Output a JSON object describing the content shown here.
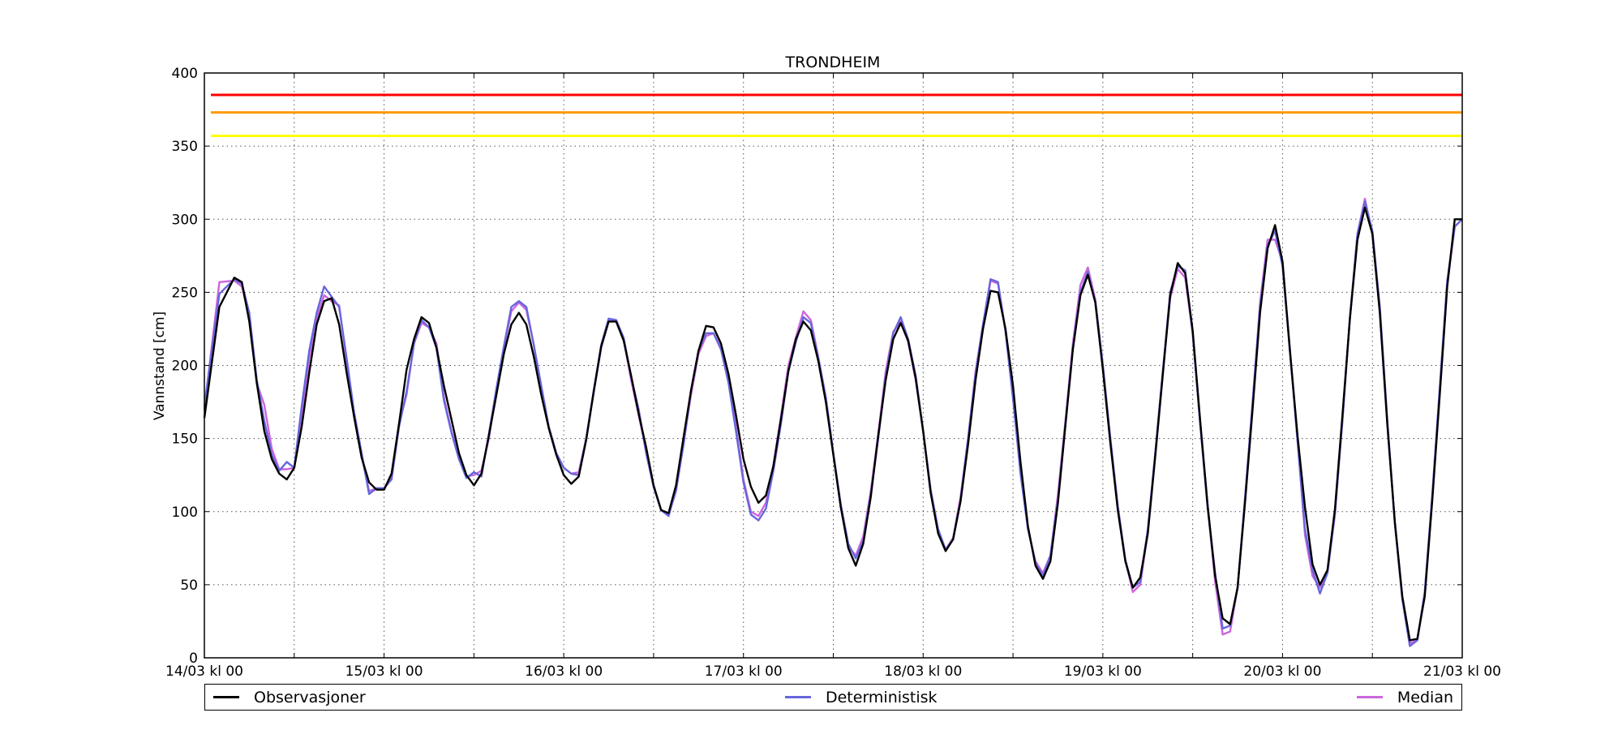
{
  "chart_data": {
    "type": "line",
    "title": "TRONDHEIM",
    "xlabel": "",
    "ylabel": "Vannstand [cm]",
    "ylim": [
      0,
      400
    ],
    "xlim": [
      0,
      168
    ],
    "x_unit": "hours since 14/03 kl 00",
    "grid": true,
    "legend_placement": "below plot",
    "y_ticks": [
      "0",
      "50",
      "100",
      "150",
      "200",
      "250",
      "300",
      "350",
      "400"
    ],
    "x_major_tick_labels": [
      "14/03 kl 00",
      "15/03 kl 00",
      "16/03 kl 00",
      "17/03 kl 00",
      "18/03 kl 00",
      "19/03 kl 00",
      "20/03 kl 00",
      "21/03 kl 00"
    ],
    "thresholds": [
      {
        "value": 385,
        "color": "#ff0000"
      },
      {
        "value": 373,
        "color": "#ff9900"
      },
      {
        "value": 357,
        "color": "#ffff00"
      }
    ],
    "series": [
      {
        "name": "Observasjoner",
        "color": "#000000",
        "x": [
          0,
          2,
          4,
          5,
          6,
          7,
          8,
          9,
          10,
          11,
          12,
          13,
          14,
          15,
          16,
          17,
          18,
          19,
          20,
          21,
          22,
          23,
          24,
          25,
          26,
          27,
          28,
          29,
          30,
          31,
          32,
          33,
          34,
          35,
          36,
          37,
          38,
          39,
          40,
          41,
          42,
          43,
          44,
          45,
          46,
          47,
          48,
          49,
          50,
          51,
          52,
          53,
          54,
          55,
          56,
          57,
          58,
          59,
          60,
          61,
          62,
          63,
          64,
          65,
          66,
          67,
          68,
          69,
          70,
          71,
          72,
          73,
          74,
          75,
          76,
          77,
          78,
          79,
          80,
          81,
          82,
          83,
          84,
          85,
          86,
          87,
          88,
          89,
          90,
          91,
          92,
          93,
          94,
          95,
          96,
          97,
          98,
          99,
          100,
          101,
          102,
          103,
          104,
          105,
          106,
          107,
          108,
          109,
          110,
          111,
          112,
          113,
          114,
          115,
          116,
          117,
          118,
          119,
          120,
          121,
          122,
          123,
          124,
          125,
          126,
          127,
          128,
          129,
          130,
          131,
          132,
          133,
          134,
          135,
          136,
          137,
          138,
          139,
          140,
          141,
          142,
          143,
          144,
          145,
          146,
          147,
          148,
          149,
          150,
          151,
          152,
          153,
          154,
          155,
          156,
          157,
          158,
          159,
          160,
          161,
          162,
          163,
          164,
          165,
          166,
          167,
          168
        ],
        "values": [
          164,
          240,
          260,
          257,
          230,
          188,
          155,
          136,
          126,
          122,
          130,
          158,
          195,
          228,
          244,
          246,
          228,
          195,
          165,
          137,
          120,
          115,
          115,
          126,
          160,
          197,
          218,
          233,
          229,
          212,
          186,
          163,
          140,
          125,
          118,
          126,
          152,
          180,
          208,
          228,
          236,
          228,
          206,
          180,
          157,
          139,
          125,
          119,
          124,
          149,
          182,
          213,
          230,
          230,
          217,
          193,
          167,
          144,
          118,
          101,
          99,
          118,
          151,
          183,
          210,
          227,
          226,
          215,
          194,
          166,
          136,
          117,
          106,
          111,
          131,
          163,
          196,
          218,
          230,
          224,
          203,
          175,
          139,
          103,
          75,
          63,
          78,
          110,
          152,
          190,
          218,
          229,
          217,
          191,
          155,
          113,
          85,
          73,
          81,
          107,
          146,
          190,
          225,
          251,
          250,
          225,
          186,
          134,
          90,
          63,
          54,
          66,
          106,
          159,
          211,
          248,
          262,
          243,
          197,
          147,
          101,
          66,
          48,
          55,
          85,
          138,
          193,
          248,
          270,
          263,
          224,
          162,
          104,
          56,
          27,
          23,
          48,
          107,
          170,
          236,
          280,
          296,
          271,
          209,
          152,
          103,
          64,
          50,
          60,
          102,
          166,
          232,
          286,
          308,
          290,
          236,
          159,
          93,
          42,
          12,
          13,
          42,
          108,
          180,
          254,
          300,
          300
        ]
      },
      {
        "name": "Deterministisk",
        "color": "#6666dd",
        "x": [
          0,
          2,
          4,
          5,
          6,
          7,
          8,
          9,
          10,
          11,
          12,
          13,
          14,
          15,
          16,
          17,
          18,
          19,
          20,
          21,
          22,
          23,
          24,
          25,
          26,
          27,
          28,
          29,
          30,
          31,
          32,
          33,
          34,
          35,
          36,
          37,
          38,
          39,
          40,
          41,
          42,
          43,
          44,
          45,
          46,
          47,
          48,
          49,
          50,
          51,
          52,
          53,
          54,
          55,
          56,
          57,
          58,
          59,
          60,
          61,
          62,
          63,
          64,
          65,
          66,
          67,
          68,
          69,
          70,
          71,
          72,
          73,
          74,
          75,
          76,
          77,
          78,
          79,
          80,
          81,
          82,
          83,
          84,
          85,
          86,
          87,
          88,
          89,
          90,
          91,
          92,
          93,
          94,
          95,
          96,
          97,
          98,
          99,
          100,
          101,
          102,
          103,
          104,
          105,
          106,
          107,
          108,
          109,
          110,
          111,
          112,
          113,
          114,
          115,
          116,
          117,
          118,
          119,
          120,
          121,
          122,
          123,
          124,
          125,
          126,
          127,
          128,
          129,
          130,
          131,
          132,
          133,
          134,
          135,
          136,
          137,
          138,
          139,
          140,
          141,
          142,
          143,
          144,
          145,
          146,
          147,
          148,
          149,
          150,
          151,
          152,
          153,
          154,
          155,
          156,
          157,
          158,
          159,
          160,
          161,
          162,
          163,
          164,
          165,
          166,
          167,
          168
        ],
        "values": [
          172,
          249,
          259,
          256,
          236,
          190,
          162,
          139,
          128,
          134,
          130,
          172,
          210,
          236,
          254,
          247,
          240,
          205,
          168,
          140,
          112,
          116,
          116,
          122,
          158,
          182,
          215,
          231,
          226,
          212,
          176,
          154,
          136,
          123,
          127,
          124,
          153,
          184,
          213,
          240,
          244,
          240,
          214,
          186,
          158,
          140,
          130,
          126,
          125,
          150,
          183,
          214,
          232,
          231,
          219,
          192,
          170,
          140,
          117,
          101,
          97,
          115,
          146,
          183,
          210,
          222,
          222,
          211,
          188,
          155,
          120,
          98,
          94,
          102,
          128,
          160,
          196,
          216,
          233,
          229,
          205,
          178,
          140,
          105,
          78,
          68,
          80,
          112,
          150,
          192,
          222,
          233,
          218,
          193,
          155,
          115,
          88,
          74,
          81,
          108,
          150,
          194,
          228,
          259,
          257,
          223,
          178,
          126,
          88,
          65,
          56,
          70,
          108,
          160,
          212,
          250,
          264,
          243,
          200,
          150,
          104,
          67,
          48,
          52,
          88,
          140,
          195,
          250,
          268,
          265,
          222,
          160,
          102,
          58,
          20,
          22,
          48,
          110,
          175,
          240,
          282,
          292,
          268,
          210,
          148,
          88,
          60,
          44,
          58,
          100,
          162,
          233,
          290,
          312,
          292,
          240,
          162,
          92,
          40,
          8,
          12,
          45,
          112,
          185,
          258,
          295,
          300
        ]
      },
      {
        "name": "Median",
        "color": "#cc66dd",
        "x": [
          0,
          2,
          4,
          5,
          6,
          7,
          8,
          9,
          10,
          11,
          12,
          13,
          14,
          15,
          16,
          17,
          18,
          19,
          20,
          21,
          22,
          23,
          24,
          25,
          26,
          27,
          28,
          29,
          30,
          31,
          32,
          33,
          34,
          35,
          36,
          37,
          38,
          39,
          40,
          41,
          42,
          43,
          44,
          45,
          46,
          47,
          48,
          49,
          50,
          51,
          52,
          53,
          54,
          55,
          56,
          57,
          58,
          59,
          60,
          61,
          62,
          63,
          64,
          65,
          66,
          67,
          68,
          69,
          70,
          71,
          72,
          73,
          74,
          75,
          76,
          77,
          78,
          79,
          80,
          81,
          82,
          83,
          84,
          85,
          86,
          87,
          88,
          89,
          90,
          91,
          92,
          93,
          94,
          95,
          96,
          97,
          98,
          99,
          100,
          101,
          102,
          103,
          104,
          105,
          106,
          107,
          108,
          109,
          110,
          111,
          112,
          113,
          114,
          115,
          116,
          117,
          118,
          119,
          120,
          121,
          122,
          123,
          124,
          125,
          126,
          127,
          128,
          129,
          130,
          131,
          132,
          133,
          134,
          135,
          136,
          137,
          138,
          139,
          140,
          141,
          142,
          143,
          144,
          145,
          146,
          147,
          148,
          149,
          150,
          151,
          152,
          153,
          154,
          155,
          156,
          157,
          158,
          159,
          160,
          161,
          162,
          163,
          164,
          165,
          166,
          167,
          168
        ],
        "values": [
          170,
          257,
          258,
          254,
          233,
          188,
          173,
          143,
          129,
          129,
          130,
          165,
          205,
          232,
          248,
          244,
          241,
          203,
          165,
          138,
          114,
          116,
          116,
          124,
          160,
          180,
          215,
          229,
          226,
          215,
          178,
          155,
          138,
          124,
          125,
          128,
          150,
          184,
          212,
          237,
          243,
          238,
          214,
          182,
          158,
          140,
          130,
          126,
          127,
          150,
          182,
          212,
          231,
          230,
          218,
          190,
          166,
          142,
          117,
          101,
          98,
          114,
          147,
          180,
          208,
          220,
          222,
          212,
          190,
          158,
          122,
          100,
          97,
          106,
          132,
          165,
          200,
          219,
          237,
          231,
          206,
          178,
          140,
          104,
          76,
          70,
          83,
          114,
          153,
          196,
          223,
          230,
          216,
          190,
          155,
          115,
          86,
          74,
          82,
          110,
          150,
          196,
          228,
          258,
          256,
          224,
          177,
          130,
          88,
          66,
          58,
          70,
          112,
          162,
          215,
          255,
          267,
          245,
          200,
          150,
          103,
          67,
          45,
          50,
          86,
          140,
          196,
          246,
          266,
          260,
          222,
          160,
          104,
          52,
          16,
          18,
          48,
          110,
          174,
          243,
          286,
          286,
          271,
          208,
          150,
          84,
          56,
          48,
          58,
          98,
          163,
          232,
          290,
          314,
          290,
          236,
          160,
          92,
          42,
          10,
          12,
          45,
          110,
          182,
          255,
          295,
          300
        ]
      }
    ]
  }
}
